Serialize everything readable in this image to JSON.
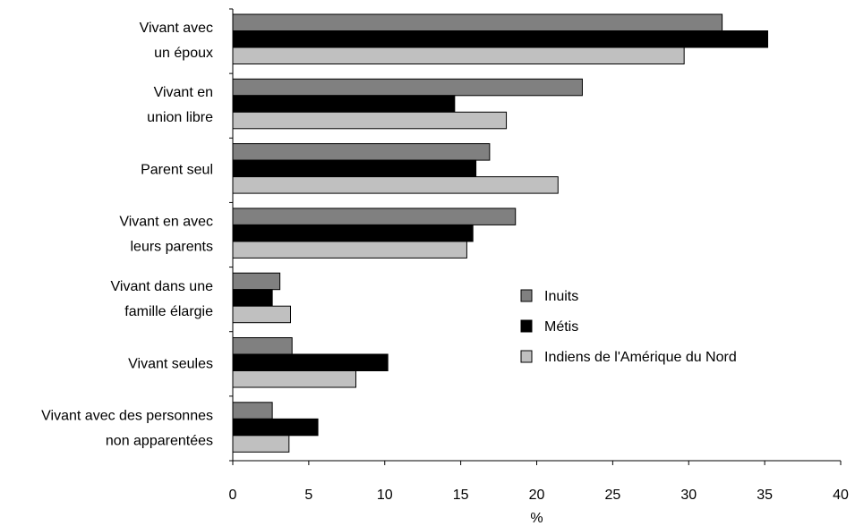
{
  "chart_data": {
    "type": "bar",
    "orientation": "horizontal",
    "title": "",
    "xlabel": "%",
    "ylabel": "",
    "xlim": [
      0,
      40
    ],
    "xticks": [
      0,
      5,
      10,
      15,
      20,
      25,
      30,
      35,
      40
    ],
    "grid": false,
    "legend_position": "right-middle",
    "categories": [
      [
        "Vivant avec",
        "un époux"
      ],
      [
        "Vivant en",
        "union libre"
      ],
      [
        "Parent seul"
      ],
      [
        "Vivant en avec",
        "leurs parents"
      ],
      [
        "Vivant dans une",
        "famille élargie"
      ],
      [
        "Vivant seules"
      ],
      [
        "Vivant avec des personnes",
        "non apparentées"
      ]
    ],
    "series": [
      {
        "name": "Inuits",
        "color": "#808080",
        "values": [
          32.2,
          23.0,
          16.9,
          18.6,
          3.1,
          3.9,
          2.6
        ]
      },
      {
        "name": "Métis",
        "color": "#000000",
        "values": [
          35.2,
          14.6,
          16.0,
          15.8,
          2.6,
          10.2,
          5.6
        ]
      },
      {
        "name": "Indiens de l'Amérique du Nord",
        "color": "#c0c0c0",
        "values": [
          29.7,
          18.0,
          21.4,
          15.4,
          3.8,
          8.1,
          3.7
        ]
      }
    ]
  }
}
